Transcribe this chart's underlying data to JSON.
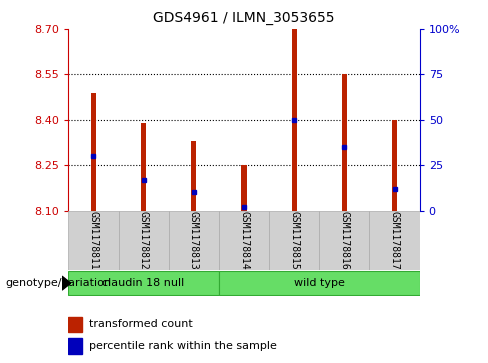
{
  "title": "GDS4961 / ILMN_3053655",
  "samples": [
    "GSM1178811",
    "GSM1178812",
    "GSM1178813",
    "GSM1178814",
    "GSM1178815",
    "GSM1178816",
    "GSM1178817"
  ],
  "transformed_count": [
    8.49,
    8.39,
    8.33,
    8.25,
    8.7,
    8.55,
    8.4
  ],
  "percentile_rank": [
    30,
    17,
    10,
    2,
    50,
    35,
    12
  ],
  "ymin": 8.1,
  "ymax": 8.7,
  "yticks": [
    8.1,
    8.25,
    8.4,
    8.55,
    8.7
  ],
  "right_yticks": [
    0,
    25,
    50,
    75,
    100
  ],
  "right_ytick_labels": [
    "0",
    "25",
    "50",
    "75",
    "100%"
  ],
  "group1_label": "claudin 18 null",
  "group2_label": "wild type",
  "group1_count": 3,
  "group2_count": 4,
  "group_color": "#66DD66",
  "group_edge_color": "#33AA33",
  "bar_color": "#BB2200",
  "blue_color": "#0000BB",
  "left_tick_color": "#CC0000",
  "right_tick_color": "#0000CC",
  "bar_bg_color": "#D0D0D0",
  "bar_edge_color": "#AAAAAA",
  "legend_red_label": "transformed count",
  "legend_blue_label": "percentile rank within the sample",
  "genotype_label": "genotype/variation"
}
